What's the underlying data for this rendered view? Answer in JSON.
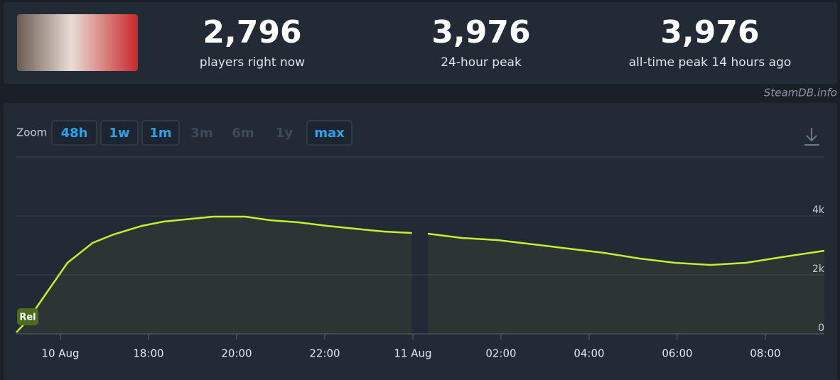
{
  "header": {
    "stats": [
      {
        "value": "2,796",
        "label": "players right now"
      },
      {
        "value": "3,976",
        "label": "24-hour peak"
      },
      {
        "value": "3,976",
        "label": "all-time peak 14 hours ago"
      }
    ]
  },
  "watermark": "SteamDB.info",
  "zoom": {
    "label": "Zoom",
    "buttons": [
      {
        "label": "48h",
        "enabled": true
      },
      {
        "label": "1w",
        "enabled": true
      },
      {
        "label": "1m",
        "enabled": true
      },
      {
        "label": "3m",
        "enabled": false
      },
      {
        "label": "6m",
        "enabled": false
      },
      {
        "label": "1y",
        "enabled": false
      },
      {
        "label": "max",
        "enabled": true
      }
    ]
  },
  "chart_data": {
    "type": "area",
    "annotation": "Rel",
    "x": [
      15.0,
      15.27,
      15.6,
      16.16,
      16.73,
      17.21,
      17.85,
      18.34,
      18.98,
      19.47,
      20.19,
      20.76,
      21.4,
      22.05,
      22.69,
      23.34,
      23.98,
      24.16,
      24.34,
      25.11,
      25.92,
      26.73,
      27.53,
      28.34,
      29.15,
      29.95,
      30.76,
      31.56,
      32.37,
      33.34
    ],
    "series": [
      {
        "name": "Players",
        "color": "#c4f12d",
        "values": [
          50,
          482,
          1205,
          2410,
          3084,
          3373,
          3663,
          3807,
          3904,
          3976,
          3976,
          3855,
          3783,
          3663,
          3566,
          3470,
          3422,
          null,
          3398,
          3253,
          3181,
          3036,
          2892,
          2747,
          2554,
          2410,
          2337,
          2410,
          2602,
          2819
        ]
      }
    ],
    "xlim": [
      15,
      33.34
    ],
    "xticks": [
      {
        "value": 16,
        "label": "10 Aug"
      },
      {
        "value": 18,
        "label": "18:00"
      },
      {
        "value": 20,
        "label": "20:00"
      },
      {
        "value": 22,
        "label": "22:00"
      },
      {
        "value": 24,
        "label": "11 Aug"
      },
      {
        "value": 26,
        "label": "02:00"
      },
      {
        "value": 28,
        "label": "04:00"
      },
      {
        "value": 30,
        "label": "06:00"
      },
      {
        "value": 32,
        "label": "08:00"
      }
    ],
    "ylim": [
      0,
      6000
    ],
    "yticks": [
      {
        "value": 0,
        "label": "0"
      },
      {
        "value": 2000,
        "label": "2k"
      },
      {
        "value": 4000,
        "label": "4k"
      }
    ],
    "grid": true
  }
}
